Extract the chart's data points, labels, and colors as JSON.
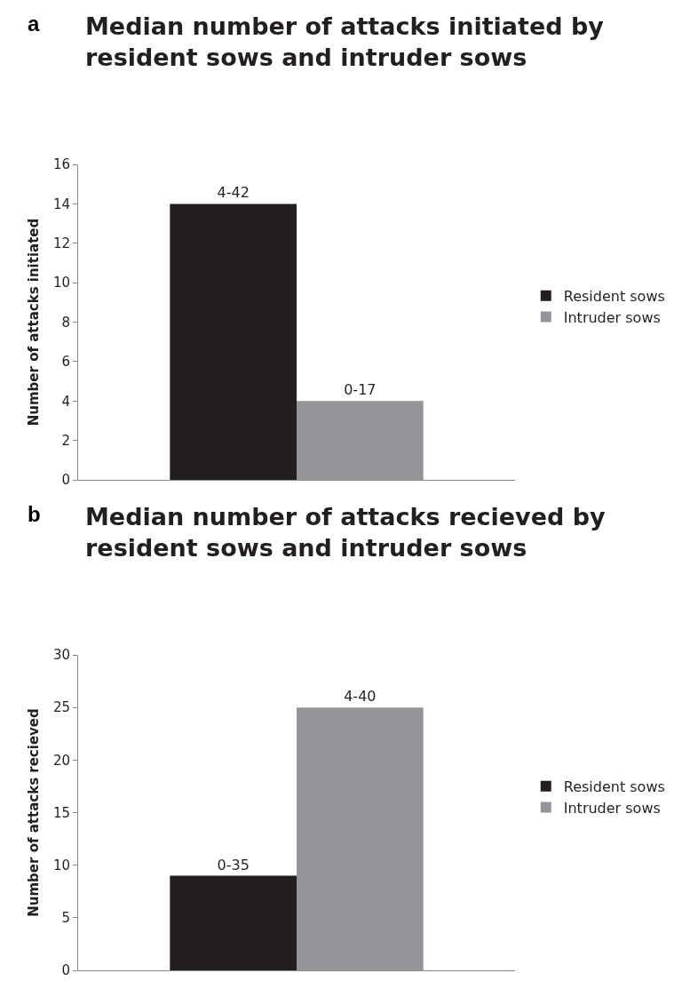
{
  "chart_data": [
    {
      "type": "bar",
      "title": "Median number of attacks initiated by resident sows and intruder sows",
      "ylabel": "Number of attacks initiated",
      "annotations": [
        "a"
      ],
      "categories": [
        null
      ],
      "series": [
        {
          "name": "Resident sows",
          "color": "#231f20",
          "values": [
            14
          ],
          "value_labels": [
            "4-42"
          ]
        },
        {
          "name": "Intruder sows",
          "color": "#939598",
          "values": [
            4
          ],
          "value_labels": [
            "0-17"
          ]
        }
      ],
      "ylim": [
        0,
        16
      ],
      "yticks": [
        0,
        2,
        4,
        6,
        8,
        10,
        12,
        14,
        16
      ],
      "legend": "right"
    },
    {
      "type": "bar",
      "title": "Median number of attacks recieved by resident sows and intruder sows",
      "ylabel": "Number of attacks recieved",
      "annotations": [
        "b"
      ],
      "categories": [
        null
      ],
      "series": [
        {
          "name": "Resident sows",
          "color": "#231f20",
          "values": [
            9
          ],
          "value_labels": [
            "0-35"
          ]
        },
        {
          "name": "Intruder sows",
          "color": "#939598",
          "values": [
            25
          ],
          "value_labels": [
            "4-40"
          ]
        }
      ],
      "ylim": [
        0,
        30
      ],
      "yticks": [
        0,
        5,
        10,
        15,
        20,
        25,
        30
      ],
      "legend": "right"
    }
  ]
}
